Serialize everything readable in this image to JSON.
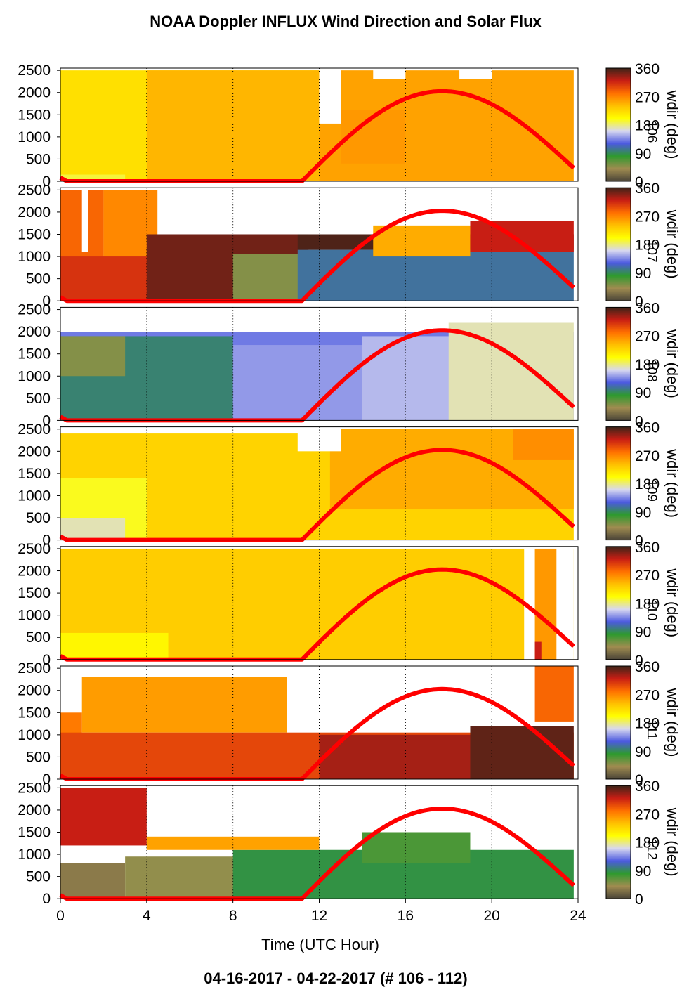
{
  "title": "NOAA Doppler INFLUX Wind Direction and Solar Flux",
  "footer": "04-16-2017 - 04-22-2017   (# 106 - 112)",
  "colormap": {
    "stops": [
      "#4a4438",
      "#a08c50",
      "#2e9a2e",
      "#4c5ae0",
      "#d8d8f0",
      "#ffff00",
      "#ffc000",
      "#ff7000",
      "#c81e14",
      "#3c2418"
    ],
    "solar_color": "#ff0000",
    "missing_color": "#ffffff"
  },
  "chart_data": {
    "type": "heatmap",
    "x_axis": {
      "label": "Time (UTC Hour)",
      "range": [
        0,
        24
      ],
      "ticks": [
        0,
        4,
        8,
        12,
        16,
        20,
        24
      ],
      "tick_labels": [
        "0",
        "4",
        "8",
        "12",
        "16",
        "20",
        "24"
      ],
      "gridlines": [
        4,
        8,
        12,
        16,
        20,
        24
      ]
    },
    "y_axis": {
      "range": [
        0,
        2550
      ],
      "ticks": [
        0,
        500,
        1000,
        1500,
        2000,
        2500
      ],
      "tick_labels": [
        "0",
        "500",
        "1000",
        "1500",
        "2000",
        "2500"
      ]
    },
    "colorbar": {
      "label": "wdir (deg)",
      "range": [
        0,
        360
      ],
      "ticks": [
        0,
        90,
        180,
        270,
        360
      ],
      "tick_labels": [
        "0",
        "90",
        "180",
        "270",
        "360"
      ]
    },
    "solar_flux_curve": {
      "zero_until_hour": 11.2,
      "peak_hour": 17.7,
      "peak_height": 2030,
      "end_hour": 23.8,
      "end_height": 300
    },
    "panels": [
      {
        "day": "106",
        "cells": [
          {
            "x0": 0,
            "x1": 12,
            "y0": 0,
            "y1": 2500,
            "wdir": 220
          },
          {
            "x0": 4,
            "x1": 12,
            "y0": 0,
            "y1": 2500,
            "wdir": 245
          },
          {
            "x0": 0,
            "x1": 3,
            "y0": 0,
            "y1": 150,
            "wdir": 190
          },
          {
            "x0": 12,
            "x1": 23.8,
            "y0": 0,
            "y1": 2500,
            "wdir": 255
          },
          {
            "x0": 13,
            "x1": 16,
            "y0": 400,
            "y1": 1600,
            "wdir": 260
          },
          {
            "x0": 12,
            "x1": 13,
            "y0": 1300,
            "y1": 2550,
            "wdir": -1
          },
          {
            "x0": 14.5,
            "x1": 16,
            "y0": 2300,
            "y1": 2550,
            "wdir": -1
          },
          {
            "x0": 18.5,
            "x1": 20,
            "y0": 2300,
            "y1": 2550,
            "wdir": -1
          }
        ]
      },
      {
        "day": "107",
        "cells": [
          {
            "x0": 0,
            "x1": 2,
            "y0": 0,
            "y1": 2500,
            "wdir": 285
          },
          {
            "x0": 2,
            "x1": 4.5,
            "y0": 900,
            "y1": 2500,
            "wdir": 268
          },
          {
            "x0": 1,
            "x1": 1.3,
            "y0": 1100,
            "y1": 2500,
            "wdir": -1
          },
          {
            "x0": 0,
            "x1": 6,
            "y0": 0,
            "y1": 1000,
            "wdir": 310
          },
          {
            "x0": 4,
            "x1": 11.5,
            "y0": 0,
            "y1": 1500,
            "wdir": 345
          },
          {
            "x0": 8,
            "x1": 11.5,
            "y0": 0,
            "y1": 1050,
            "wdir": 50
          },
          {
            "x0": 11,
            "x1": 23.8,
            "y0": 0,
            "y1": 1150,
            "wdir": 105
          },
          {
            "x0": 11,
            "x1": 23.8,
            "y0": 1150,
            "y1": 1500,
            "wdir": 355
          },
          {
            "x0": 14.5,
            "x1": 19,
            "y0": 1000,
            "y1": 1700,
            "wdir": 250
          },
          {
            "x0": 19,
            "x1": 23.8,
            "y0": 1100,
            "y1": 1800,
            "wdir": 320
          }
        ]
      },
      {
        "day": "108",
        "cells": [
          {
            "x0": 0,
            "x1": 23.8,
            "y0": 0,
            "y1": 2000,
            "wdir": 130
          },
          {
            "x0": 0,
            "x1": 8,
            "y0": 0,
            "y1": 1900,
            "wdir": 95
          },
          {
            "x0": 0,
            "x1": 3,
            "y0": 1000,
            "y1": 1900,
            "wdir": 50
          },
          {
            "x0": 8,
            "x1": 20,
            "y0": 0,
            "y1": 1700,
            "wdir": 140
          },
          {
            "x0": 14,
            "x1": 19,
            "y0": 0,
            "y1": 1900,
            "wdir": 150
          },
          {
            "x0": 18,
            "x1": 23.8,
            "y0": 0,
            "y1": 2200,
            "wdir": 170
          }
        ]
      },
      {
        "day": "109",
        "cells": [
          {
            "x0": 0,
            "x1": 23.8,
            "y0": 0,
            "y1": 2400,
            "wdir": 228
          },
          {
            "x0": 0,
            "x1": 4,
            "y0": 0,
            "y1": 1400,
            "wdir": 195
          },
          {
            "x0": 0,
            "x1": 3,
            "y0": 0,
            "y1": 500,
            "wdir": 170
          },
          {
            "x0": 12.5,
            "x1": 23.8,
            "y0": 700,
            "y1": 2500,
            "wdir": 250
          },
          {
            "x0": 11,
            "x1": 13,
            "y0": 2000,
            "y1": 2550,
            "wdir": -1
          },
          {
            "x0": 21,
            "x1": 23.8,
            "y0": 1800,
            "y1": 2500,
            "wdir": 265
          }
        ]
      },
      {
        "day": "110",
        "cells": [
          {
            "x0": 0,
            "x1": 23.8,
            "y0": 0,
            "y1": 2500,
            "wdir": 232
          },
          {
            "x0": 0,
            "x1": 5,
            "y0": 0,
            "y1": 600,
            "wdir": 205
          },
          {
            "x0": 21.5,
            "x1": 23.8,
            "y0": 0,
            "y1": 2550,
            "wdir": -1
          },
          {
            "x0": 22,
            "x1": 23,
            "y0": 0,
            "y1": 2500,
            "wdir": 260
          },
          {
            "x0": 22,
            "x1": 22.3,
            "y0": 0,
            "y1": 400,
            "wdir": 320
          }
        ]
      },
      {
        "day": "111",
        "cells": [
          {
            "x0": 1,
            "x1": 10.5,
            "y0": 1050,
            "y1": 2300,
            "wdir": 258
          },
          {
            "x0": 0,
            "x1": 1,
            "y0": 600,
            "y1": 1500,
            "wdir": 275
          },
          {
            "x0": 0,
            "x1": 23.8,
            "y0": 0,
            "y1": 1050,
            "wdir": 300
          },
          {
            "x0": 12,
            "x1": 21,
            "y0": 0,
            "y1": 1000,
            "wdir": 330
          },
          {
            "x0": 19,
            "x1": 23.8,
            "y0": 0,
            "y1": 1200,
            "wdir": 350
          },
          {
            "x0": 22,
            "x1": 23.8,
            "y0": 1300,
            "y1": 2550,
            "wdir": 285
          }
        ]
      },
      {
        "day": "112",
        "cells": [
          {
            "x0": 0,
            "x1": 4,
            "y0": 1200,
            "y1": 2500,
            "wdir": 320
          },
          {
            "x0": 0,
            "x1": 3,
            "y0": 0,
            "y1": 800,
            "wdir": 30
          },
          {
            "x0": 3,
            "x1": 10,
            "y0": 0,
            "y1": 950,
            "wdir": 45
          },
          {
            "x0": 8,
            "x1": 23.8,
            "y0": 0,
            "y1": 1100,
            "wdir": 85
          },
          {
            "x0": 14,
            "x1": 19,
            "y0": 800,
            "y1": 1500,
            "wdir": 70
          },
          {
            "x0": 4,
            "x1": 12,
            "y0": 1100,
            "y1": 1400,
            "wdir": 255
          }
        ]
      }
    ]
  }
}
